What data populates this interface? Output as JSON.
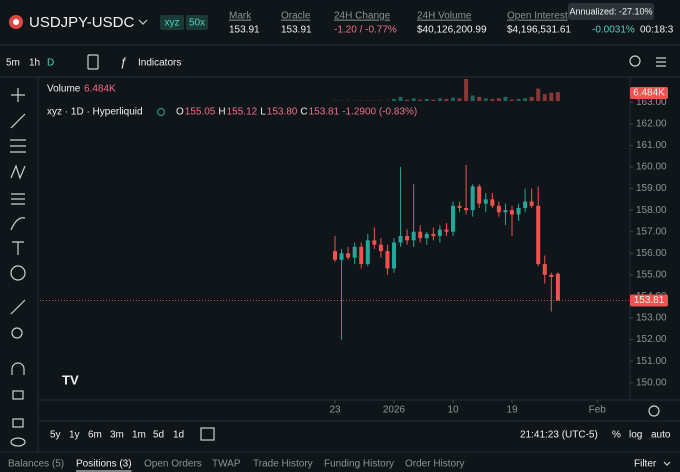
{
  "header": {
    "symbol": "USDJPY-USDC",
    "badges": [
      "xyz",
      "50x"
    ],
    "stats": [
      {
        "label": "Mark",
        "value": "153.91"
      },
      {
        "label": "Oracle",
        "value": "153.91"
      },
      {
        "label": "24H Change",
        "value": "-1.20 / -0.77%"
      },
      {
        "label": "24H Volume",
        "value": "$40,126,200.99"
      },
      {
        "label": "Open Interest",
        "value": "$4,196,531.61"
      }
    ],
    "funding": "-0.0031%",
    "countdown": "00:18:3",
    "tooltip": "Annualized: -27.10%"
  },
  "toolbar": {
    "intervals": [
      "5m",
      "1h",
      "D"
    ],
    "indicators": "Indicators"
  },
  "chart_data": {
    "type": "candlestick",
    "name": "xyz · 1D · Hyperliquid",
    "legend_ohlc": [
      [
        "O",
        "155.05"
      ],
      [
        "H",
        "155.12"
      ],
      [
        "L",
        "153.80"
      ],
      [
        "C",
        "153.81"
      ]
    ],
    "legend_change": "-1.2900 (-0.83%)",
    "volume_label": "Volume",
    "volume_value": "6.484K",
    "last_price_label": "153.81",
    "up_color": "#26a69a",
    "down_color": "#ef5350",
    "x": [
      0,
      1,
      2,
      3,
      4,
      5,
      6,
      7,
      8,
      9,
      10,
      11,
      12,
      13,
      14,
      15,
      16,
      17,
      18,
      19,
      20,
      21,
      22,
      23,
      24,
      25,
      26,
      27,
      28,
      29,
      30,
      31,
      32,
      33,
      34
    ],
    "open": [
      156.1,
      155.7,
      156.0,
      155.8,
      156.3,
      155.5,
      156.6,
      156.4,
      156.1,
      155.3,
      156.5,
      156.8,
      156.6,
      157.0,
      156.7,
      156.9,
      156.8,
      157.1,
      157.0,
      158.2,
      158.1,
      158.0,
      159.1,
      158.3,
      158.5,
      158.2,
      157.9,
      158.0,
      157.8,
      158.1,
      158.4,
      158.2,
      155.5,
      155.0,
      155.05
    ],
    "high": [
      156.8,
      156.2,
      156.3,
      156.5,
      156.5,
      156.9,
      157.2,
      156.7,
      156.4,
      156.7,
      160.0,
      157.1,
      159.2,
      157.3,
      157.0,
      157.2,
      157.3,
      157.4,
      158.4,
      158.4,
      160.1,
      159.2,
      159.2,
      158.8,
      158.8,
      158.4,
      158.3,
      158.2,
      158.3,
      159.0,
      159.0,
      159.1,
      155.9,
      155.1,
      155.12
    ],
    "low": [
      155.6,
      152.0,
      155.7,
      155.5,
      155.3,
      155.4,
      156.2,
      155.8,
      155.0,
      155.1,
      156.3,
      156.4,
      156.3,
      156.5,
      156.4,
      156.6,
      156.5,
      156.8,
      156.8,
      157.9,
      157.8,
      157.7,
      158.1,
      157.9,
      158.1,
      157.7,
      157.3,
      156.8,
      157.5,
      157.9,
      158.1,
      155.4,
      154.6,
      153.3,
      153.8
    ],
    "close": [
      155.7,
      156.0,
      155.8,
      156.3,
      155.5,
      156.6,
      156.4,
      156.1,
      155.3,
      156.5,
      156.8,
      156.6,
      157.0,
      156.7,
      156.9,
      156.8,
      157.1,
      157.0,
      158.2,
      158.1,
      158.0,
      159.1,
      158.3,
      158.5,
      158.2,
      157.9,
      158.0,
      157.8,
      158.1,
      158.4,
      158.2,
      155.5,
      155.0,
      154.9,
      153.81
    ],
    "volume": [
      0.2,
      0.2,
      0.2,
      0.2,
      0.2,
      0.2,
      0.2,
      0.2,
      0.2,
      1.5,
      3,
      1,
      2,
      1,
      1.5,
      1,
      2,
      1.5,
      2.5,
      2,
      16,
      4,
      3,
      2,
      1.5,
      2,
      3,
      1,
      1.5,
      2,
      3,
      9,
      5,
      6,
      6.484
    ],
    "xlim": [
      -45,
      45
    ],
    "xticks": [
      {
        "value": 0,
        "label": "23"
      },
      {
        "value": 9,
        "label": "2026"
      },
      {
        "value": 18,
        "label": "10"
      },
      {
        "value": 27,
        "label": "19"
      },
      {
        "value": 40,
        "label": "Feb"
      }
    ],
    "ylim": [
      149.2,
      163.8
    ],
    "yticks": [
      {
        "value": 150,
        "label": "150.00"
      },
      {
        "value": 151,
        "label": "151.00"
      },
      {
        "value": 152,
        "label": "152.00"
      },
      {
        "value": 153,
        "label": "153.00"
      },
      {
        "value": 154,
        "label": "154.00"
      },
      {
        "value": 155,
        "label": "155.00"
      },
      {
        "value": 156,
        "label": "156.00"
      },
      {
        "value": 157,
        "label": "157.00"
      },
      {
        "value": 158,
        "label": "158.00"
      },
      {
        "value": 159,
        "label": "159.00"
      },
      {
        "value": 160,
        "label": "160.00"
      },
      {
        "value": 161,
        "label": "161.00"
      },
      {
        "value": 162,
        "label": "162.00"
      },
      {
        "value": 163,
        "label": "163.00"
      }
    ]
  },
  "footer": {
    "ranges": [
      "5y",
      "1y",
      "6m",
      "3m",
      "1m",
      "5d",
      "1d"
    ],
    "time": "21:41:23 (UTC-5)",
    "options": [
      "%",
      "log",
      "auto"
    ]
  },
  "tabs": {
    "items": [
      "Balances (5)",
      "Positions (3)",
      "Open Orders",
      "TWAP",
      "Trade History",
      "Funding History",
      "Order History"
    ],
    "filter": "Filter"
  }
}
